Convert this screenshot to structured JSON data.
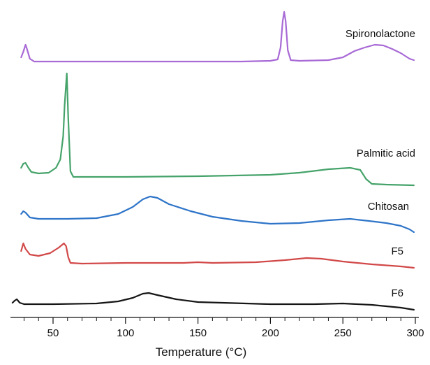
{
  "chart_data": {
    "type": "line",
    "xlabel": "Temperature (°C)",
    "ylabel": "",
    "xlim": [
      22,
      300
    ],
    "xticks": [
      50,
      100,
      150,
      200,
      250,
      300
    ],
    "y_axis_shown": false,
    "grid": false,
    "legend": "none (series names printed beside each trace)",
    "series": [
      {
        "name": "Spironolactone",
        "color": "#a86ad6",
        "points": [
          [
            28,
            82
          ],
          [
            29.5,
            74
          ],
          [
            31,
            64
          ],
          [
            32,
            70
          ],
          [
            34,
            84
          ],
          [
            37,
            88
          ],
          [
            45,
            88
          ],
          [
            100,
            88
          ],
          [
            150,
            88
          ],
          [
            180,
            88
          ],
          [
            200,
            87
          ],
          [
            205,
            85
          ],
          [
            207,
            68
          ],
          [
            208.5,
            30
          ],
          [
            209.5,
            17
          ],
          [
            210.5,
            30
          ],
          [
            212,
            72
          ],
          [
            214,
            86
          ],
          [
            220,
            87
          ],
          [
            240,
            86
          ],
          [
            250,
            82
          ],
          [
            258,
            73
          ],
          [
            265,
            68
          ],
          [
            272,
            64
          ],
          [
            278,
            65
          ],
          [
            284,
            70
          ],
          [
            290,
            76
          ],
          [
            296,
            84
          ],
          [
            299,
            86
          ]
        ]
      },
      {
        "name": "Palmitic acid",
        "color": "#45a36a",
        "points": [
          [
            28,
            240
          ],
          [
            29.5,
            234
          ],
          [
            31,
            233
          ],
          [
            33,
            240
          ],
          [
            35,
            246
          ],
          [
            40,
            248
          ],
          [
            47,
            247
          ],
          [
            52,
            240
          ],
          [
            55,
            228
          ],
          [
            57,
            195
          ],
          [
            58,
            150
          ],
          [
            59.5,
            105
          ],
          [
            60.5,
            170
          ],
          [
            62,
            245
          ],
          [
            64,
            253
          ],
          [
            70,
            253
          ],
          [
            100,
            253
          ],
          [
            150,
            252
          ],
          [
            200,
            250
          ],
          [
            220,
            247
          ],
          [
            240,
            242
          ],
          [
            255,
            240
          ],
          [
            262,
            243
          ],
          [
            266,
            256
          ],
          [
            270,
            263
          ],
          [
            280,
            264
          ],
          [
            299,
            265
          ]
        ]
      },
      {
        "name": "Chitosan",
        "color": "#2e74c8",
        "points": [
          [
            28,
            306
          ],
          [
            29.5,
            302
          ],
          [
            31,
            304
          ],
          [
            34,
            311
          ],
          [
            40,
            313
          ],
          [
            60,
            313
          ],
          [
            80,
            312
          ],
          [
            95,
            306
          ],
          [
            105,
            296
          ],
          [
            112,
            285
          ],
          [
            117,
            281
          ],
          [
            122,
            283
          ],
          [
            130,
            292
          ],
          [
            145,
            302
          ],
          [
            160,
            310
          ],
          [
            180,
            316
          ],
          [
            200,
            320
          ],
          [
            220,
            319
          ],
          [
            240,
            315
          ],
          [
            255,
            313
          ],
          [
            268,
            316
          ],
          [
            280,
            319
          ],
          [
            290,
            323
          ],
          [
            296,
            328
          ],
          [
            299,
            332
          ]
        ]
      },
      {
        "name": "F5",
        "color": "#d24848",
        "points": [
          [
            28,
            359
          ],
          [
            29.5,
            348
          ],
          [
            31,
            356
          ],
          [
            34,
            364
          ],
          [
            40,
            366
          ],
          [
            48,
            362
          ],
          [
            54,
            354
          ],
          [
            57.5,
            348
          ],
          [
            59,
            352
          ],
          [
            60.5,
            368
          ],
          [
            62,
            376
          ],
          [
            70,
            377
          ],
          [
            100,
            376
          ],
          [
            140,
            376
          ],
          [
            150,
            375
          ],
          [
            160,
            376
          ],
          [
            190,
            375
          ],
          [
            210,
            372
          ],
          [
            225,
            369
          ],
          [
            235,
            370
          ],
          [
            250,
            374
          ],
          [
            270,
            378
          ],
          [
            290,
            381
          ],
          [
            299,
            383
          ]
        ]
      },
      {
        "name": "F6",
        "color": "#151515",
        "points": [
          [
            22,
            433
          ],
          [
            23.5,
            430
          ],
          [
            25,
            428
          ],
          [
            27,
            433
          ],
          [
            30,
            435
          ],
          [
            50,
            435
          ],
          [
            80,
            434
          ],
          [
            95,
            431
          ],
          [
            105,
            426
          ],
          [
            112,
            420
          ],
          [
            116,
            419
          ],
          [
            122,
            422
          ],
          [
            135,
            428
          ],
          [
            150,
            432
          ],
          [
            200,
            435
          ],
          [
            230,
            435
          ],
          [
            250,
            434
          ],
          [
            270,
            436
          ],
          [
            290,
            440
          ],
          [
            299,
            443
          ]
        ]
      }
    ]
  }
}
